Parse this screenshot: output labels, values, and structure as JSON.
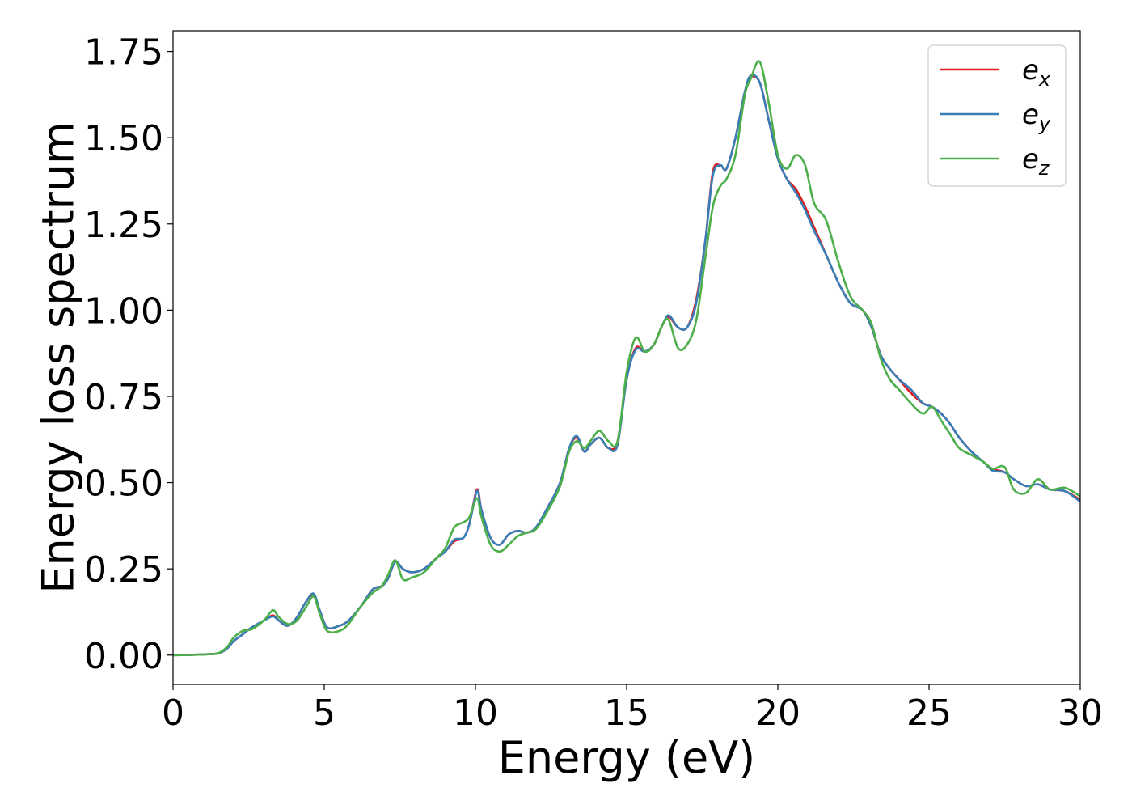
{
  "chart_data": {
    "type": "line",
    "xlabel": "Energy (eV)",
    "ylabel": "Energy loss spectrum",
    "xlim": [
      0,
      30
    ],
    "ylim": [
      -0.085,
      1.81
    ],
    "xticks": [
      0,
      5,
      10,
      15,
      20,
      25,
      30
    ],
    "xtick_labels": [
      "0",
      "5",
      "10",
      "15",
      "20",
      "25",
      "30"
    ],
    "yticks": [
      0.0,
      0.25,
      0.5,
      0.75,
      1.0,
      1.25,
      1.5,
      1.75
    ],
    "ytick_labels": [
      "0.00",
      "0.25",
      "0.50",
      "0.75",
      "1.00",
      "1.25",
      "1.50",
      "1.75"
    ],
    "grid": false,
    "legend_position": "top-right",
    "series": [
      {
        "name": "e_x",
        "legend_base": "e",
        "legend_sub": "x",
        "color": "#e41a1c",
        "x": [
          0,
          1,
          1.5,
          1.8,
          2.0,
          2.3,
          2.6,
          3.0,
          3.3,
          3.5,
          3.8,
          4.1,
          4.4,
          4.65,
          4.85,
          5.1,
          5.5,
          5.8,
          6.2,
          6.6,
          6.9,
          7.1,
          7.35,
          7.6,
          7.9,
          8.3,
          8.7,
          9.0,
          9.3,
          9.6,
          9.8,
          10.05,
          10.2,
          10.5,
          10.8,
          11.1,
          11.4,
          11.7,
          12.0,
          12.4,
          12.8,
          13.1,
          13.35,
          13.6,
          13.8,
          14.1,
          14.4,
          14.7,
          15.0,
          15.3,
          15.6,
          15.9,
          16.2,
          16.4,
          16.7,
          17.0,
          17.3,
          17.6,
          17.85,
          18.1,
          18.3,
          18.6,
          18.9,
          19.1,
          19.4,
          19.7,
          20.0,
          20.3,
          20.6,
          20.9,
          21.2,
          21.6,
          22.0,
          22.4,
          22.8,
          23.1,
          23.4,
          23.7,
          24.0,
          24.4,
          24.8,
          25.1,
          25.4,
          25.7,
          26.0,
          26.4,
          26.8,
          27.1,
          27.5,
          27.8,
          28.2,
          28.6,
          29.0,
          29.5,
          30.0
        ],
        "y": [
          0.0,
          0.002,
          0.005,
          0.02,
          0.04,
          0.06,
          0.08,
          0.1,
          0.115,
          0.1,
          0.085,
          0.11,
          0.155,
          0.175,
          0.13,
          0.08,
          0.085,
          0.1,
          0.14,
          0.19,
          0.2,
          0.22,
          0.27,
          0.25,
          0.24,
          0.25,
          0.28,
          0.3,
          0.33,
          0.34,
          0.38,
          0.48,
          0.42,
          0.34,
          0.32,
          0.35,
          0.36,
          0.355,
          0.37,
          0.43,
          0.5,
          0.6,
          0.63,
          0.59,
          0.61,
          0.63,
          0.6,
          0.62,
          0.8,
          0.89,
          0.88,
          0.9,
          0.96,
          0.98,
          0.95,
          0.95,
          1.03,
          1.2,
          1.4,
          1.42,
          1.41,
          1.5,
          1.63,
          1.675,
          1.66,
          1.55,
          1.44,
          1.38,
          1.35,
          1.3,
          1.24,
          1.16,
          1.08,
          1.02,
          1.0,
          0.95,
          0.87,
          0.83,
          0.8,
          0.76,
          0.73,
          0.72,
          0.7,
          0.67,
          0.63,
          0.59,
          0.56,
          0.54,
          0.53,
          0.51,
          0.49,
          0.495,
          0.48,
          0.475,
          0.45
        ]
      },
      {
        "name": "e_y",
        "legend_base": "e",
        "legend_sub": "y",
        "color": "#377eb8",
        "x": [
          0,
          1,
          1.5,
          1.8,
          2.0,
          2.3,
          2.6,
          3.0,
          3.3,
          3.5,
          3.8,
          4.1,
          4.4,
          4.65,
          4.85,
          5.1,
          5.5,
          5.8,
          6.2,
          6.6,
          6.9,
          7.1,
          7.35,
          7.6,
          7.9,
          8.3,
          8.7,
          9.0,
          9.3,
          9.6,
          9.8,
          10.05,
          10.2,
          10.5,
          10.8,
          11.1,
          11.4,
          11.7,
          12.0,
          12.4,
          12.8,
          13.1,
          13.35,
          13.6,
          13.8,
          14.1,
          14.4,
          14.7,
          15.0,
          15.3,
          15.6,
          15.9,
          16.2,
          16.4,
          16.7,
          17.0,
          17.3,
          17.6,
          17.85,
          18.1,
          18.3,
          18.6,
          18.9,
          19.1,
          19.4,
          19.7,
          20.0,
          20.3,
          20.6,
          20.9,
          21.2,
          21.6,
          22.0,
          22.4,
          22.8,
          23.1,
          23.4,
          23.7,
          24.0,
          24.4,
          24.8,
          25.1,
          25.4,
          25.7,
          26.0,
          26.4,
          26.8,
          27.1,
          27.5,
          27.8,
          28.2,
          28.6,
          29.0,
          29.5,
          30.0
        ],
        "y": [
          0.0,
          0.002,
          0.005,
          0.02,
          0.04,
          0.06,
          0.08,
          0.1,
          0.112,
          0.1,
          0.085,
          0.11,
          0.155,
          0.178,
          0.13,
          0.08,
          0.085,
          0.1,
          0.14,
          0.19,
          0.2,
          0.22,
          0.27,
          0.25,
          0.24,
          0.25,
          0.28,
          0.3,
          0.335,
          0.34,
          0.38,
          0.475,
          0.42,
          0.34,
          0.32,
          0.35,
          0.36,
          0.355,
          0.37,
          0.43,
          0.5,
          0.6,
          0.635,
          0.59,
          0.61,
          0.63,
          0.6,
          0.61,
          0.8,
          0.885,
          0.88,
          0.9,
          0.96,
          0.985,
          0.95,
          0.95,
          1.02,
          1.2,
          1.39,
          1.42,
          1.41,
          1.5,
          1.63,
          1.68,
          1.66,
          1.55,
          1.44,
          1.38,
          1.34,
          1.29,
          1.23,
          1.16,
          1.08,
          1.02,
          1.0,
          0.95,
          0.87,
          0.83,
          0.8,
          0.77,
          0.73,
          0.72,
          0.7,
          0.67,
          0.63,
          0.59,
          0.56,
          0.535,
          0.53,
          0.51,
          0.49,
          0.495,
          0.48,
          0.475,
          0.445
        ]
      },
      {
        "name": "e_z",
        "legend_base": "e",
        "legend_sub": "z",
        "color": "#4daf4a",
        "x": [
          0,
          1,
          1.5,
          1.8,
          2.0,
          2.3,
          2.6,
          3.0,
          3.3,
          3.5,
          3.8,
          4.1,
          4.4,
          4.65,
          4.85,
          5.1,
          5.5,
          5.8,
          6.2,
          6.6,
          6.9,
          7.1,
          7.35,
          7.6,
          7.9,
          8.3,
          8.7,
          9.0,
          9.3,
          9.6,
          9.8,
          10.05,
          10.2,
          10.5,
          10.8,
          11.1,
          11.4,
          11.7,
          12.0,
          12.4,
          12.8,
          13.1,
          13.35,
          13.6,
          13.8,
          14.1,
          14.4,
          14.7,
          15.0,
          15.3,
          15.6,
          15.9,
          16.2,
          16.4,
          16.7,
          17.0,
          17.3,
          17.6,
          17.85,
          18.1,
          18.3,
          18.6,
          18.9,
          19.1,
          19.4,
          19.7,
          20.0,
          20.3,
          20.6,
          20.9,
          21.2,
          21.6,
          22.0,
          22.4,
          22.8,
          23.1,
          23.4,
          23.7,
          24.0,
          24.4,
          24.8,
          25.1,
          25.4,
          25.7,
          26.0,
          26.4,
          26.8,
          27.1,
          27.5,
          27.8,
          28.2,
          28.6,
          29.0,
          29.5,
          30.0
        ],
        "y": [
          0.0,
          0.002,
          0.006,
          0.025,
          0.05,
          0.07,
          0.075,
          0.1,
          0.13,
          0.11,
          0.09,
          0.1,
          0.14,
          0.17,
          0.12,
          0.07,
          0.07,
          0.09,
          0.14,
          0.18,
          0.2,
          0.23,
          0.275,
          0.22,
          0.225,
          0.24,
          0.28,
          0.31,
          0.37,
          0.385,
          0.4,
          0.455,
          0.4,
          0.32,
          0.3,
          0.32,
          0.345,
          0.355,
          0.365,
          0.42,
          0.49,
          0.59,
          0.62,
          0.6,
          0.62,
          0.65,
          0.62,
          0.62,
          0.82,
          0.92,
          0.88,
          0.9,
          0.96,
          0.97,
          0.89,
          0.9,
          0.97,
          1.15,
          1.3,
          1.36,
          1.38,
          1.45,
          1.62,
          1.67,
          1.72,
          1.6,
          1.45,
          1.41,
          1.45,
          1.42,
          1.31,
          1.26,
          1.14,
          1.04,
          1.0,
          0.96,
          0.86,
          0.8,
          0.77,
          0.73,
          0.7,
          0.72,
          0.68,
          0.64,
          0.6,
          0.58,
          0.56,
          0.54,
          0.545,
          0.48,
          0.47,
          0.51,
          0.48,
          0.485,
          0.46
        ]
      }
    ]
  }
}
